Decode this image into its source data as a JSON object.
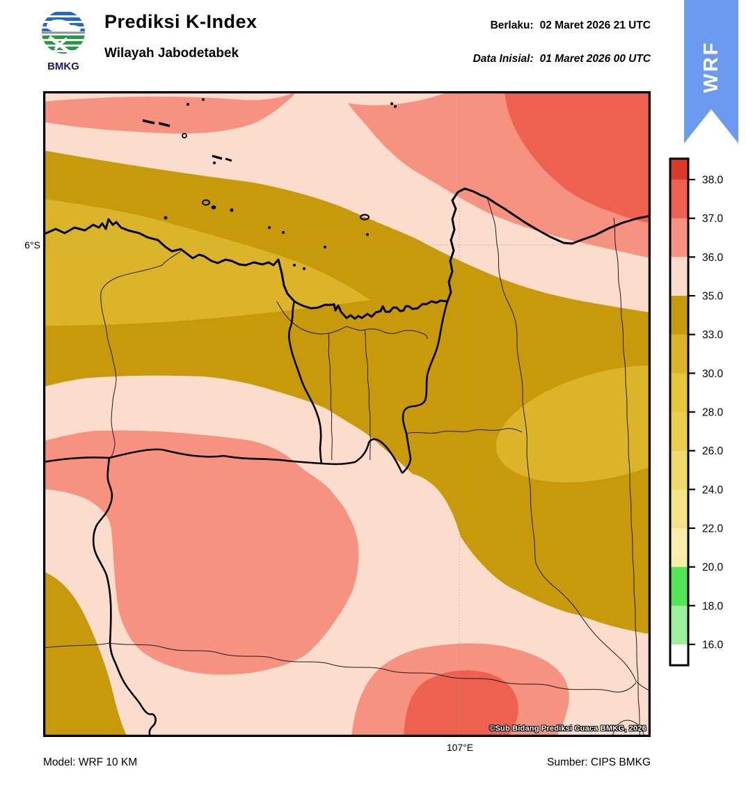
{
  "header": {
    "title": "Prediksi K-Index",
    "subtitle": "Wilayah Jabodetabek",
    "logo_text": "BMKG",
    "valid_label": "Berlaku:",
    "valid_value": "02 Maret 2026 21 UTC",
    "initial_label": "Data Inisial:",
    "initial_value": "01 Maret 2026 00 UTC"
  },
  "ribbon": {
    "label": "WRF",
    "color": "#6D9AF1"
  },
  "map": {
    "lat_label": "6°S",
    "lon_label": "107°E",
    "copyright": "©Sub Bidang Prediksi Cuaca BMKG, 2026",
    "palette": {
      "pink_35_36": "#FCDCCD",
      "salmon_36_37": "#F6927F",
      "red_37_38": "#EE6150",
      "gold_33_35": "#C8990B",
      "gold_30_33": "#DBB42A"
    }
  },
  "colorbar": {
    "tick_labels": [
      "38.0",
      "37.0",
      "36.0",
      "35.0",
      "33.0",
      "30.0",
      "28.0",
      "26.0",
      "24.0",
      "22.0",
      "20.0",
      "18.0",
      "16.0"
    ],
    "segment_colors_top_to_bottom": [
      "#DC3A28",
      "#EE6150",
      "#F6927F",
      "#FCDCCD",
      "#C8990B",
      "#DBB42A",
      "#E4C637",
      "#EACD4F",
      "#EFD96B",
      "#F4E288",
      "#F9EDA9",
      "#55E455",
      "#9CF09C",
      "#FDFDFD"
    ]
  },
  "footer": {
    "model": "Model: WRF 10 KM",
    "source": "Sumber: CIPS BMKG"
  }
}
